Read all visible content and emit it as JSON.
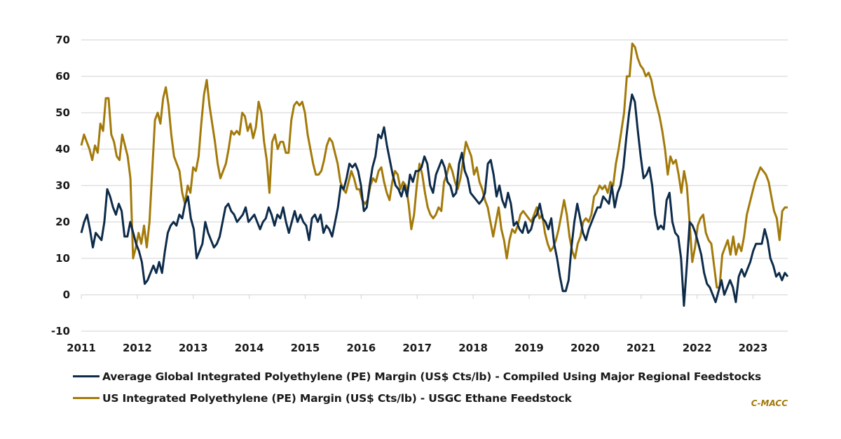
{
  "chart_data": {
    "type": "line",
    "title": "",
    "xlabel": "",
    "ylabel": "",
    "ylim": [
      -10,
      70
    ],
    "xlim": [
      2011,
      2023.62
    ],
    "yticks": [
      70,
      60,
      50,
      40,
      30,
      20,
      10,
      0,
      -10
    ],
    "xticks": [
      "2011",
      "2012",
      "2013",
      "2014",
      "2015",
      "2016",
      "2017",
      "2018",
      "2019",
      "2020",
      "2021",
      "2022",
      "2023"
    ],
    "grid": true,
    "legend_position": "bottom",
    "source": "C-MACC",
    "series": [
      {
        "name": "Average Global Integrated Polyethylene (PE) Margin (US$ Cts/lb) - Compiled Using Major Regional Feedstocks",
        "color": "#0d2b4a",
        "x_start": 2011.0,
        "x_end": 2023.62,
        "values": [
          17,
          20,
          22,
          18,
          13,
          17,
          16,
          15,
          20,
          29,
          27,
          24,
          22,
          25,
          23,
          16,
          16,
          20,
          17,
          14,
          12,
          9,
          3,
          4,
          6,
          8,
          6,
          9,
          6,
          12,
          17,
          19,
          20,
          19,
          22,
          21,
          25,
          27,
          21,
          18,
          10,
          12,
          14,
          20,
          17,
          15,
          13,
          14,
          16,
          20,
          24,
          25,
          23,
          22,
          20,
          21,
          22,
          24,
          20,
          21,
          22,
          20,
          18,
          20,
          21,
          24,
          22,
          19,
          22,
          21,
          24,
          20,
          17,
          20,
          23,
          20,
          22,
          20,
          19,
          15,
          21,
          22,
          20,
          22,
          17,
          19,
          18,
          16,
          20,
          24,
          30,
          29,
          32,
          36,
          35,
          36,
          34,
          30,
          23,
          24,
          30,
          35,
          38,
          44,
          43,
          46,
          41,
          37,
          33,
          30,
          29,
          27,
          30,
          27,
          33,
          31,
          34,
          34,
          35,
          38,
          36,
          30,
          28,
          33,
          35,
          37,
          35,
          31,
          30,
          27,
          28,
          36,
          39,
          34,
          32,
          28,
          27,
          26,
          25,
          26,
          28,
          36,
          37,
          33,
          27,
          30,
          26,
          24,
          28,
          25,
          19,
          20,
          18,
          17,
          20,
          17,
          18,
          21,
          22,
          25,
          21,
          20,
          18,
          21,
          14,
          10,
          5,
          1,
          1,
          4,
          13,
          20,
          25,
          21,
          17,
          15,
          18,
          20,
          22,
          24,
          24,
          27,
          26,
          25,
          30,
          24,
          28,
          30,
          35,
          43,
          50,
          55,
          53,
          45,
          38,
          32,
          33,
          35,
          30,
          22,
          18,
          19,
          18,
          26,
          28,
          20,
          17,
          16,
          10,
          -3,
          8,
          20,
          19,
          17,
          14,
          11,
          6,
          3,
          2,
          0,
          -2,
          1,
          4,
          0,
          2,
          4,
          2,
          -2,
          5,
          7,
          5,
          7,
          9,
          12,
          14,
          14,
          14,
          18,
          15,
          10,
          8,
          5,
          6,
          4,
          6,
          5
        ]
      },
      {
        "name": "US Integrated Polyethylene (PE) Margin (US$ Cts/lb) - USGC Ethane Feedstock",
        "color": "#a37a0a",
        "x_start": 2011.0,
        "x_end": 2023.62,
        "values": [
          41,
          44,
          42,
          40,
          37,
          41,
          39,
          47,
          45,
          54,
          54,
          44,
          42,
          38,
          37,
          44,
          41,
          38,
          32,
          10,
          13,
          17,
          14,
          19,
          13,
          20,
          34,
          48,
          50,
          47,
          54,
          57,
          52,
          44,
          38,
          36,
          34,
          28,
          25,
          30,
          28,
          35,
          34,
          38,
          47,
          55,
          59,
          52,
          47,
          42,
          36,
          32,
          34,
          36,
          40,
          45,
          44,
          45,
          44,
          50,
          49,
          45,
          47,
          43,
          46,
          53,
          50,
          42,
          37,
          28,
          42,
          44,
          40,
          42,
          42,
          39,
          39,
          48,
          52,
          53,
          52,
          53,
          50,
          44,
          40,
          36,
          33,
          33,
          34,
          37,
          41,
          43,
          42,
          39,
          36,
          31,
          29,
          28,
          31,
          34,
          32,
          29,
          29,
          26,
          25,
          26,
          30,
          32,
          31,
          34,
          35,
          31,
          28,
          26,
          31,
          34,
          33,
          29,
          31,
          30,
          25,
          18,
          22,
          30,
          36,
          33,
          28,
          24,
          22,
          21,
          22,
          24,
          23,
          31,
          33,
          36,
          34,
          31,
          29,
          32,
          37,
          42,
          40,
          38,
          33,
          35,
          31,
          29,
          26,
          24,
          20,
          16,
          20,
          24,
          18,
          15,
          10,
          15,
          18,
          17,
          19,
          22,
          23,
          22,
          21,
          20,
          22,
          24,
          21,
          22,
          17,
          14,
          12,
          13,
          15,
          18,
          22,
          26,
          22,
          16,
          12,
          10,
          14,
          16,
          20,
          21,
          20,
          22,
          27,
          28,
          30,
          29,
          30,
          28,
          31,
          30,
          36,
          40,
          45,
          50,
          60,
          60,
          69,
          68,
          65,
          63,
          62,
          60,
          61,
          59,
          55,
          52,
          49,
          45,
          40,
          33,
          38,
          36,
          37,
          33,
          28,
          34,
          30,
          20,
          9,
          13,
          19,
          21,
          22,
          17,
          15,
          14,
          8,
          2,
          2,
          11,
          13,
          15,
          11,
          16,
          11,
          14,
          12,
          16,
          22,
          25,
          28,
          31,
          33,
          35,
          34,
          33,
          31,
          27,
          23,
          21,
          15,
          23,
          24,
          24
        ]
      }
    ]
  }
}
